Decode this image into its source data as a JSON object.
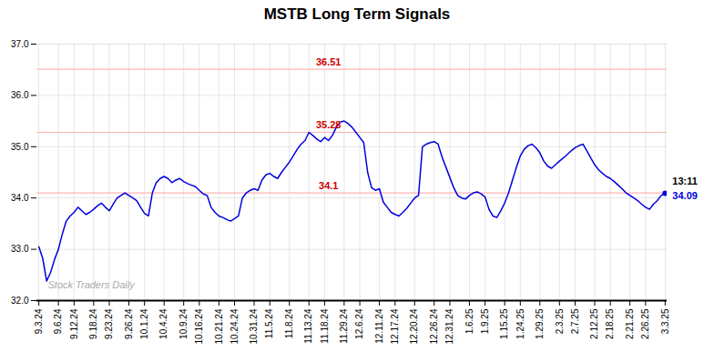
{
  "chart_data": {
    "type": "line",
    "title": "MSTB Long Term Signals",
    "watermark": "Stock Traders Daily",
    "color": "#0000dd",
    "ylim": [
      32,
      37
    ],
    "yticks": [
      32,
      33,
      34,
      35,
      36,
      37
    ],
    "grid": true,
    "reference_lines": {
      "values": [
        36.51,
        35.28,
        34.1
      ],
      "labels": [
        "36.51",
        "35.28",
        "34.1"
      ],
      "color": "#ffb3b3",
      "label_color": "#cc0000"
    },
    "last_point": {
      "label": "13:11",
      "value_label": "34.09",
      "color": "#0000dd"
    },
    "categories": [
      "9.3.24",
      null,
      null,
      null,
      null,
      "9.6.24",
      null,
      null,
      null,
      "9.12.24",
      null,
      null,
      null,
      null,
      "9.18.24",
      null,
      null,
      null,
      "9.23.24",
      null,
      null,
      null,
      null,
      "9.26.24",
      null,
      null,
      null,
      "10.1.24",
      null,
      null,
      null,
      null,
      "10.4.24",
      null,
      null,
      null,
      null,
      "10.9.24",
      null,
      null,
      null,
      "10.16.24",
      null,
      null,
      null,
      null,
      "10.21.24",
      null,
      null,
      null,
      "10.24.24",
      null,
      null,
      null,
      null,
      "10.31.24",
      null,
      null,
      null,
      "11.5.24",
      null,
      null,
      null,
      null,
      "11.8.24",
      null,
      null,
      null,
      null,
      "11.13.24",
      null,
      null,
      null,
      "11.18.24",
      null,
      null,
      null,
      null,
      "11.29.24",
      null,
      null,
      null,
      "12.6.24",
      null,
      null,
      null,
      null,
      "12.11.24",
      null,
      null,
      null,
      "12.17.24",
      null,
      null,
      null,
      null,
      "12.20.24",
      null,
      null,
      null,
      null,
      "12.26.24",
      null,
      null,
      null,
      "12.31.24",
      null,
      null,
      null,
      null,
      "1.6.25",
      null,
      null,
      null,
      "1.9.25",
      null,
      null,
      null,
      null,
      "1.15.25",
      null,
      null,
      null,
      "1.24.25",
      null,
      null,
      null,
      null,
      "1.29.25",
      null,
      null,
      null,
      null,
      "2.3.25",
      null,
      null,
      null,
      "2.7.25",
      null,
      null,
      null,
      null,
      "2.12.25",
      null,
      null,
      null,
      "2.18.25",
      null,
      null,
      null,
      null,
      "2.21.25",
      null,
      null,
      null,
      "2.26.25",
      null,
      null,
      null,
      null,
      "3.3.25"
    ],
    "values": [
      33.05,
      32.82,
      32.38,
      32.55,
      32.8,
      33.0,
      33.3,
      33.55,
      33.65,
      33.72,
      33.82,
      33.75,
      33.68,
      33.72,
      33.78,
      33.85,
      33.9,
      33.82,
      33.75,
      33.88,
      34.0,
      34.05,
      34.1,
      34.05,
      34.0,
      33.95,
      33.82,
      33.7,
      33.65,
      34.1,
      34.3,
      34.38,
      34.42,
      34.38,
      34.3,
      34.35,
      34.38,
      34.32,
      34.28,
      34.25,
      34.22,
      34.15,
      34.08,
      34.05,
      33.82,
      33.72,
      33.65,
      33.62,
      33.58,
      33.55,
      33.6,
      33.65,
      34.0,
      34.1,
      34.15,
      34.18,
      34.15,
      34.35,
      34.45,
      34.48,
      34.42,
      34.38,
      34.5,
      34.6,
      34.7,
      34.82,
      34.95,
      35.05,
      35.12,
      35.28,
      35.22,
      35.15,
      35.1,
      35.18,
      35.12,
      35.22,
      35.38,
      35.48,
      35.5,
      35.45,
      35.38,
      35.28,
      35.18,
      35.08,
      34.5,
      34.2,
      34.15,
      34.18,
      33.92,
      33.82,
      33.72,
      33.68,
      33.65,
      33.72,
      33.8,
      33.9,
      34.0,
      34.05,
      35.0,
      35.05,
      35.08,
      35.1,
      35.05,
      34.8,
      34.6,
      34.4,
      34.2,
      34.05,
      34.0,
      33.98,
      34.05,
      34.1,
      34.12,
      34.08,
      34.02,
      33.78,
      33.65,
      33.62,
      33.75,
      33.9,
      34.1,
      34.35,
      34.6,
      34.82,
      34.95,
      35.02,
      35.05,
      34.98,
      34.88,
      34.72,
      34.62,
      34.58,
      34.65,
      34.72,
      34.78,
      34.85,
      34.92,
      34.98,
      35.02,
      35.05,
      34.92,
      34.78,
      34.65,
      34.55,
      34.48,
      34.42,
      34.38,
      34.32,
      34.25,
      34.18,
      34.1,
      34.05,
      34.0,
      33.95,
      33.88,
      33.82,
      33.78,
      33.88,
      33.95,
      34.05,
      34.09
    ]
  }
}
